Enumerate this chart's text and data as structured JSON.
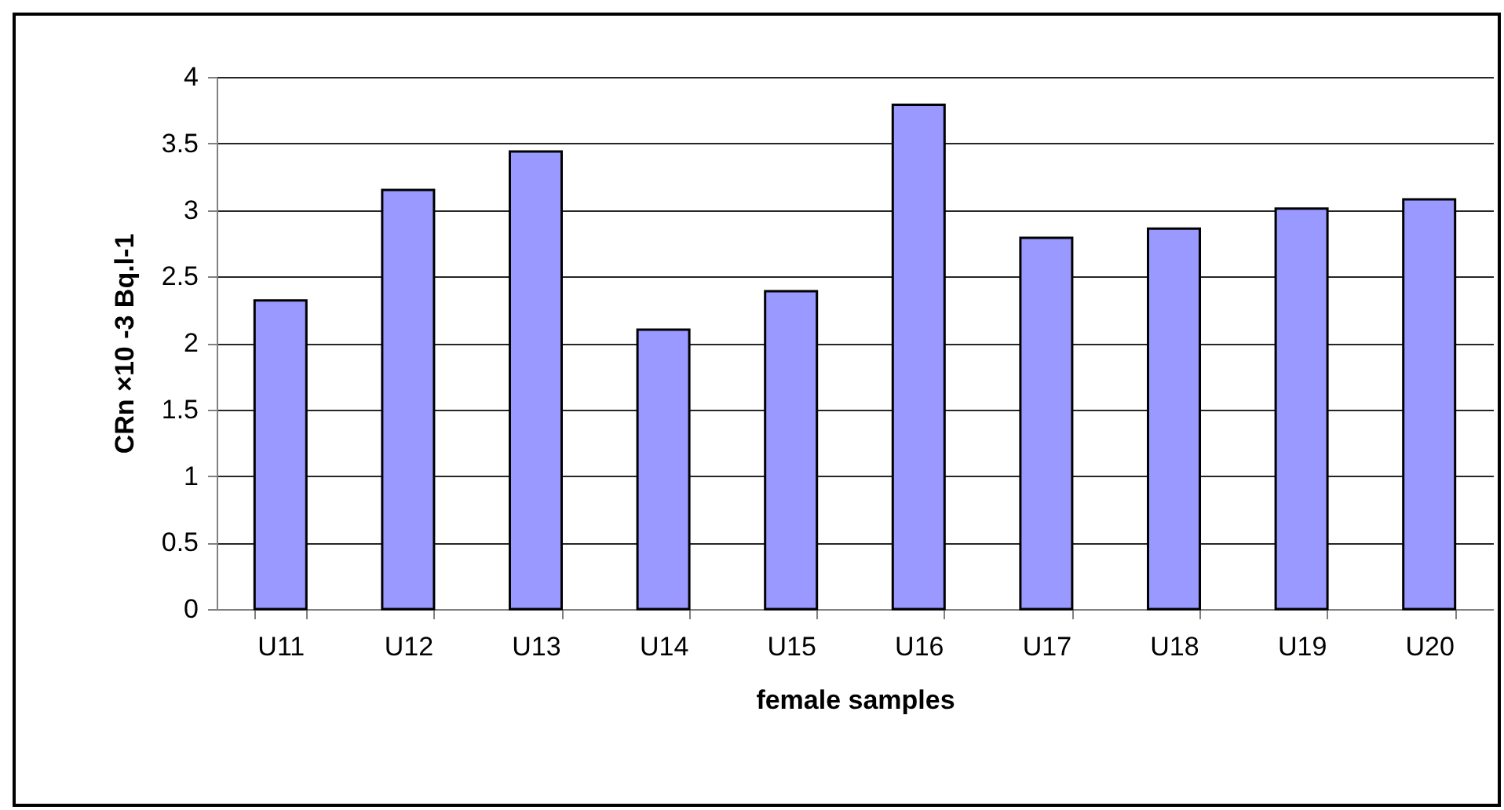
{
  "chart_data": {
    "type": "bar",
    "xlabel": "female samples",
    "ylabel": "CRn ×10 -3    Bq.l-1",
    "categories": [
      "U11",
      "U12",
      "U13",
      "U14",
      "U15",
      "U16",
      "U17",
      "U18",
      "U19",
      "U20"
    ],
    "values": [
      2.32,
      3.15,
      3.44,
      2.1,
      2.39,
      3.79,
      2.79,
      2.86,
      3.01,
      3.08
    ],
    "color": "#9999ff",
    "ylim": [
      0,
      4
    ],
    "yticks": [
      0,
      0.5,
      1,
      1.5,
      2,
      2.5,
      3,
      3.5,
      4
    ],
    "grid": "y"
  }
}
